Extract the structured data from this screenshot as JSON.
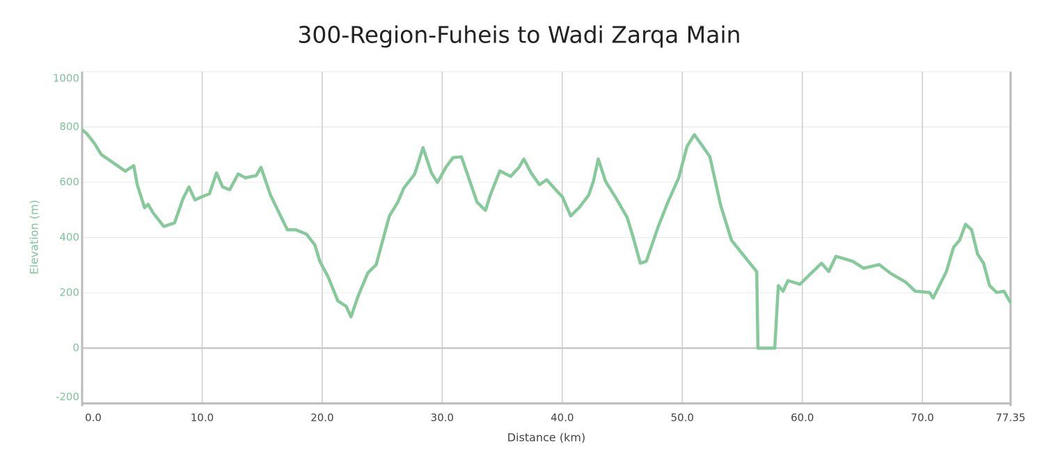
{
  "chart_data": {
    "type": "line",
    "title": "300-Region-Fuheis to Wadi Zarqa Main",
    "x_label": "Distance (km)",
    "y_label": "Elevation (m)",
    "color": "#86c99b",
    "x": [
      0,
      0.4,
      1.0,
      1.6,
      2.7,
      3.6,
      4.3,
      4.6,
      5.2,
      5.5,
      5.9,
      6.8,
      7.7,
      8.4,
      8.9,
      9.4,
      10.0,
      10.6,
      11.2,
      11.7,
      12.3,
      13.0,
      13.6,
      14.5,
      14.9,
      15.7,
      16.4,
      17.1,
      17.8,
      18.7,
      19.4,
      19.8,
      20.5,
      21.3,
      22.0,
      22.4,
      23.0,
      23.8,
      24.5,
      25.2,
      25.6,
      26.3,
      26.8,
      27.7,
      28.4,
      29.1,
      29.6,
      30.3,
      30.9,
      31.6,
      32.1,
      32.9,
      33.6,
      34.0,
      34.8,
      35.7,
      36.4,
      36.8,
      37.4,
      38.1,
      38.7,
      39.6,
      40.0,
      40.7,
      41.4,
      42.2,
      42.6,
      43.0,
      43.6,
      44.5,
      45.4,
      45.9,
      46.5,
      47.0,
      48.0,
      48.8,
      49.7,
      50.4,
      51.0,
      51.7,
      52.3,
      53.2,
      54.1,
      54.8,
      55.5,
      56.2,
      56.3,
      57.7,
      58.0,
      58.4,
      58.8,
      59.8,
      61.0,
      61.6,
      62.2,
      62.8,
      64.2,
      65.1,
      66.4,
      67.4,
      68.6,
      69.4,
      70.6,
      70.9,
      72.0,
      72.6,
      73.1,
      73.6,
      74.1,
      74.6,
      75.1,
      75.6,
      76.2,
      76.8,
      77.35
    ],
    "values": [
      790,
      775,
      742,
      700,
      667,
      640,
      660,
      590,
      508,
      520,
      490,
      440,
      453,
      540,
      583,
      536,
      548,
      558,
      634,
      583,
      573,
      630,
      616,
      624,
      654,
      553,
      490,
      428,
      428,
      412,
      372,
      314,
      257,
      171,
      151,
      113,
      189,
      272,
      302,
      415,
      478,
      528,
      579,
      629,
      725,
      634,
      599,
      654,
      689,
      692,
      629,
      528,
      498,
      553,
      641,
      621,
      654,
      684,
      634,
      591,
      609,
      566,
      548,
      478,
      508,
      553,
      604,
      684,
      604,
      541,
      473,
      402,
      307,
      314,
      440,
      528,
      616,
      730,
      772,
      730,
      692,
      516,
      390,
      352,
      314,
      277,
      0,
      0,
      226,
      206,
      244,
      231,
      282,
      307,
      277,
      332,
      314,
      289,
      302,
      269,
      239,
      206,
      201,
      181,
      277,
      365,
      390,
      448,
      428,
      340,
      307,
      226,
      201,
      206,
      164
    ],
    "xlim": [
      0,
      77.35
    ],
    "xticks": [
      {
        "value": 0,
        "label": "0.0"
      },
      {
        "value": 10,
        "label": "10.0"
      },
      {
        "value": 20,
        "label": "20.0"
      },
      {
        "value": 30,
        "label": "30.0"
      },
      {
        "value": 40,
        "label": "40.0"
      },
      {
        "value": 50,
        "label": "50.0"
      },
      {
        "value": 60,
        "label": "60.0"
      },
      {
        "value": 70,
        "label": "70.0"
      },
      77.35
    ],
    "ylim": [
      -200,
      1000
    ],
    "yticks": [
      -200,
      0,
      200,
      400,
      600,
      800,
      1000
    ],
    "grid": true
  }
}
